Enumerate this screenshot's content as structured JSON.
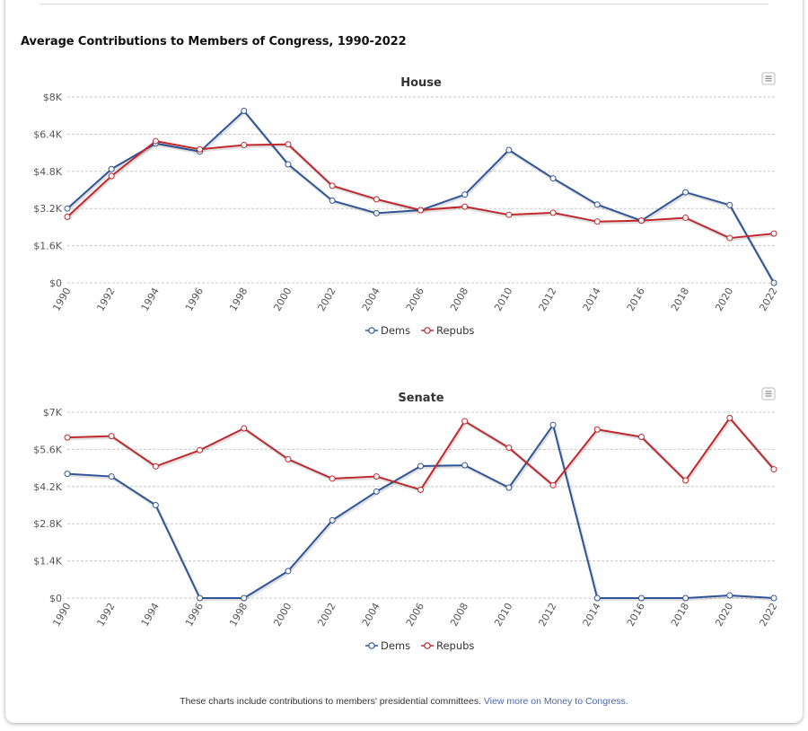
{
  "page": {
    "title": "Average Contributions to Members of Congress, 1990-2022",
    "footer_text": "These charts include contributions to members' presidential committees.",
    "footer_link": "View more on Money to Congress."
  },
  "colors": {
    "dems": "#2f5597",
    "repubs": "#c0282d",
    "grid": "#c8c8c8"
  },
  "chart_data": [
    {
      "type": "line",
      "title": "House",
      "menu_icon": "hamburger-menu-icon",
      "xlabel": "",
      "ylabel": "",
      "categories": [
        "1990",
        "1992",
        "1994",
        "1996",
        "1998",
        "2000",
        "2002",
        "2004",
        "2006",
        "2008",
        "2010",
        "2012",
        "2014",
        "2016",
        "2018",
        "2020",
        "2022"
      ],
      "yticks": [
        0,
        1600,
        3200,
        4800,
        6400,
        8000
      ],
      "ytick_labels": [
        "$0",
        "$1.6K",
        "$3.2K",
        "$4.8K",
        "$6.4K",
        "$8K"
      ],
      "ylim": [
        0,
        8000
      ],
      "grid": true,
      "legend": "bottom-center",
      "series": [
        {
          "name": "Dems",
          "values": [
            3200,
            4900,
            6000,
            5650,
            7400,
            5100,
            3540,
            3000,
            3130,
            3800,
            5720,
            4500,
            3370,
            2680,
            3900,
            3350,
            0
          ]
        },
        {
          "name": "Repubs",
          "values": [
            2840,
            4600,
            6100,
            5750,
            5930,
            5960,
            4180,
            3600,
            3130,
            3280,
            2930,
            3020,
            2640,
            2680,
            2800,
            1930,
            2120
          ]
        }
      ]
    },
    {
      "type": "line",
      "title": "Senate",
      "menu_icon": "hamburger-menu-icon",
      "xlabel": "",
      "ylabel": "",
      "categories": [
        "1990",
        "1992",
        "1994",
        "1996",
        "1998",
        "2000",
        "2002",
        "2004",
        "2006",
        "2008",
        "2010",
        "2012",
        "2014",
        "2016",
        "2018",
        "2020",
        "2022"
      ],
      "yticks": [
        0,
        1400,
        2800,
        4200,
        5600,
        7000
      ],
      "ytick_labels": [
        "$0",
        "$1.4K",
        "$2.8K",
        "$4.2K",
        "$5.6K",
        "$7K"
      ],
      "ylim": [
        0,
        7000
      ],
      "grid": true,
      "legend": "bottom-center",
      "series": [
        {
          "name": "Dems",
          "values": [
            4680,
            4580,
            3500,
            0,
            0,
            1020,
            2930,
            4010,
            4970,
            5000,
            4160,
            6520,
            0,
            0,
            0,
            100,
            0
          ]
        },
        {
          "name": "Repubs",
          "values": [
            6050,
            6100,
            4960,
            5570,
            6390,
            5230,
            4500,
            4580,
            4080,
            6660,
            5660,
            4250,
            6350,
            6070,
            4430,
            6780,
            4850
          ]
        }
      ]
    }
  ]
}
